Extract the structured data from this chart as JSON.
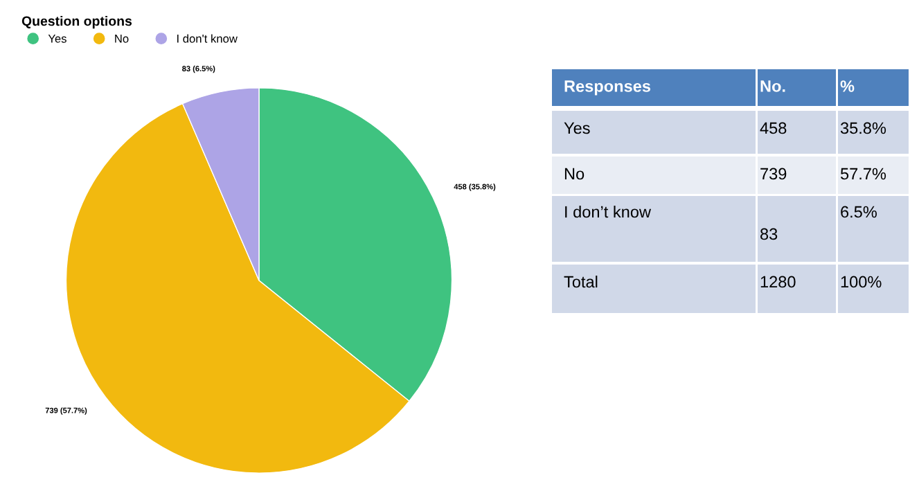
{
  "chart_data": [
    {
      "type": "pie",
      "legend_title": "Question options",
      "legend": "top left",
      "categories": [
        "Yes",
        "No",
        "I don't know"
      ],
      "values": [
        458,
        739,
        83
      ],
      "colors": [
        "#3fc380",
        "#f2b90f",
        "#ada4e6"
      ],
      "value_labels": [
        "458 (35.8%)",
        "739 (57.7%)",
        "83 (6.5%)"
      ]
    },
    {
      "type": "other",
      "annotations": [
        "Responses",
        "No.",
        "%",
        "Yes",
        "458",
        "35.8%",
        "No",
        "739",
        "57.7%",
        "I don’t know",
        "83",
        "6.5%",
        "Total",
        "1280",
        "100%"
      ]
    }
  ]
}
